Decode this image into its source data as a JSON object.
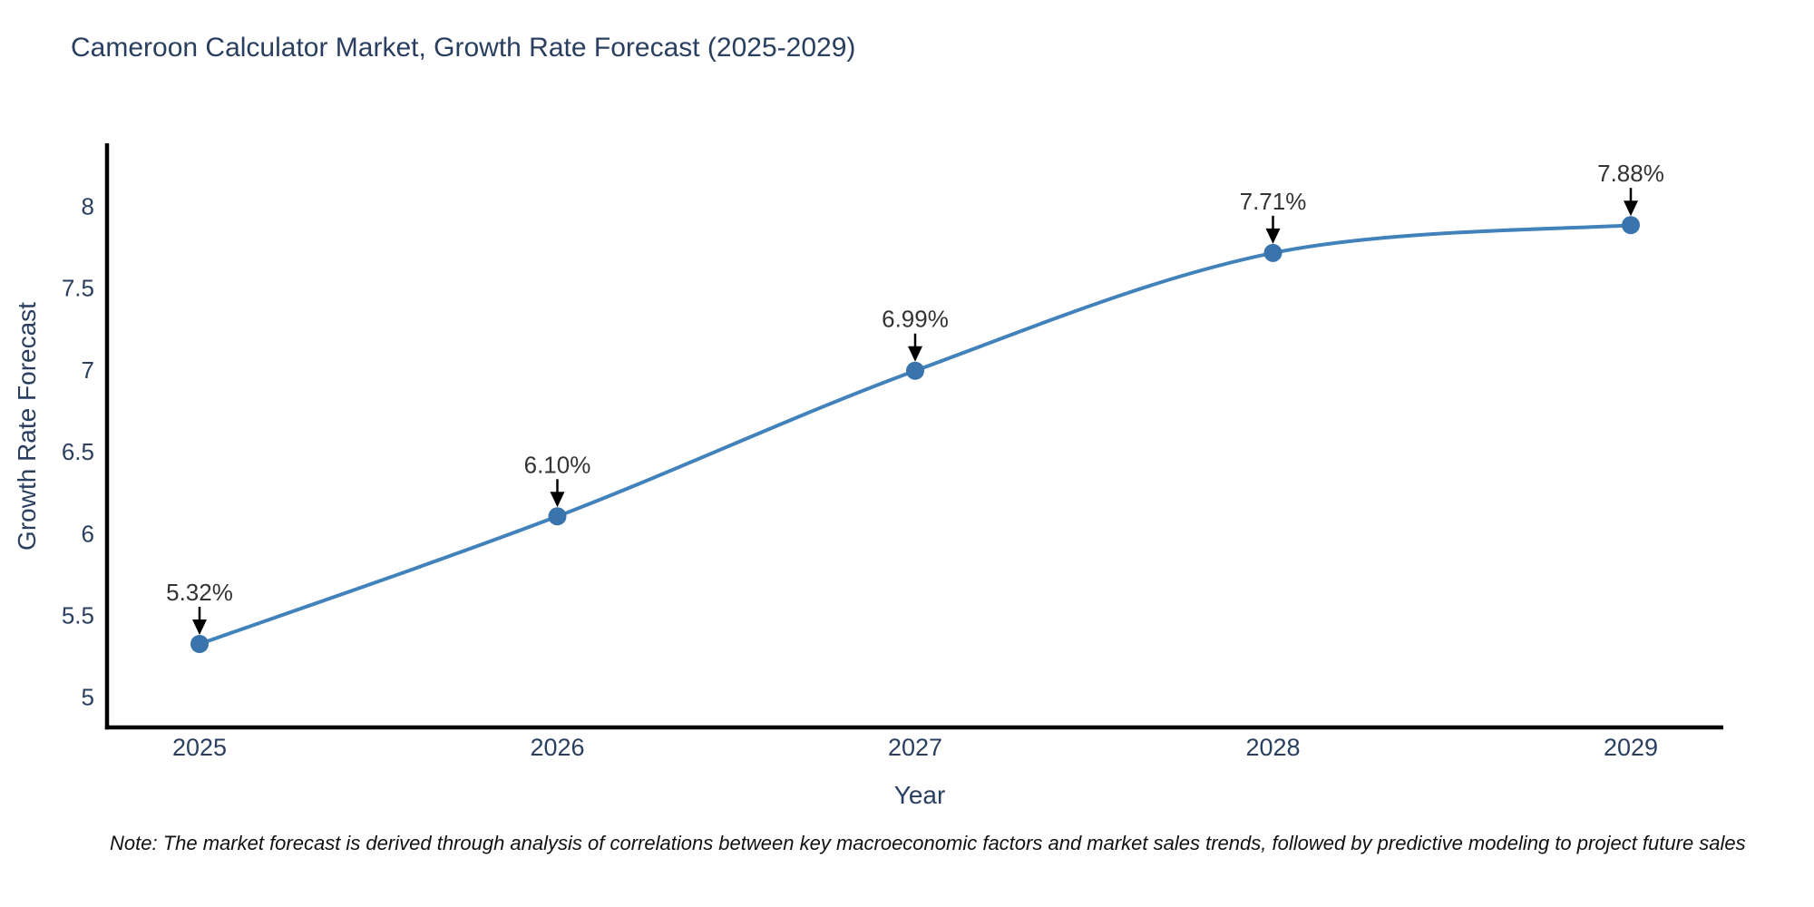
{
  "note": {
    "text": "Note: The market forecast is derived through analysis of correlations between key macroeconomic factors and market sales trends, followed by predictive modeling to project future sales"
  },
  "chart_data": {
    "type": "line",
    "title": "Cameroon Calculator Market, Growth Rate Forecast (2025-2029)",
    "xlabel": "Year",
    "ylabel": "Growth Rate Forecast",
    "categories": [
      "2025",
      "2026",
      "2027",
      "2028",
      "2029"
    ],
    "series": [
      {
        "name": "Growth Rate Forecast",
        "values": [
          5.32,
          6.1,
          6.99,
          7.71,
          7.88
        ]
      }
    ],
    "data_labels": [
      "5.32%",
      "6.10%",
      "6.99%",
      "7.71%",
      "7.88%"
    ],
    "yticks": [
      5,
      5.5,
      6,
      6.5,
      7,
      7.5,
      8
    ],
    "ylim": [
      4.81,
      8.38
    ],
    "grid": false,
    "legend": "none",
    "marker": "circle",
    "smooth": true,
    "annotation_arrows": true,
    "colors": {
      "line": "#4282bb",
      "marker": "#3a74ad",
      "axis": "#000000",
      "tick_text": "#2a3f5f",
      "label_text": "#2a3f5f",
      "annotation_text": "#333333",
      "background": "#ffffff"
    }
  }
}
